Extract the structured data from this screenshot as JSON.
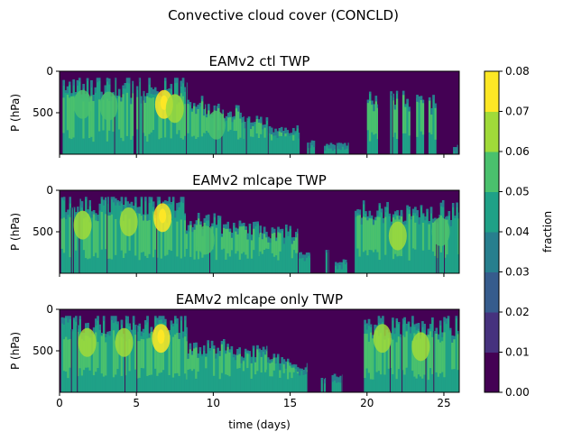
{
  "figure_title": "Convective cloud cover (CONCLD)",
  "colors": {
    "levels": [
      "#440154",
      "#46327e",
      "#365c8d",
      "#277f8e",
      "#1fa187",
      "#4ac16d",
      "#a0da39",
      "#fde725"
    ],
    "background": "#ffffff",
    "axis": "#000000"
  },
  "chart_data": [
    {
      "type": "heatmap",
      "title": "EAMv2 ctl TWP",
      "xlabel": "",
      "ylabel": "P (hPa)",
      "xlim": [
        0,
        26
      ],
      "ylim": [
        1000,
        0
      ],
      "yticks": [
        "0",
        "500"
      ],
      "xticks": [
        "0",
        "5",
        "10",
        "15",
        "20",
        "25"
      ],
      "xticklabels_visible": false,
      "segments": [
        {
          "x": [
            0.2,
            4.8
          ],
          "level": 4,
          "ptop": 180
        },
        {
          "x": [
            5.0,
            8.3
          ],
          "level": 4,
          "ptop": 160
        },
        {
          "x": [
            8.3,
            9.5
          ],
          "level": 4,
          "ptop": 350
        },
        {
          "x": [
            9.5,
            12.0
          ],
          "level": 4,
          "ptop": 480
        },
        {
          "x": [
            12.0,
            13.6
          ],
          "level": 4,
          "ptop": 600
        },
        {
          "x": [
            13.6,
            15.6
          ],
          "level": 4,
          "ptop": 700
        },
        {
          "x": [
            16.1,
            16.6
          ],
          "level": 4,
          "ptop": 850
        },
        {
          "x": [
            17.2,
            18.8
          ],
          "level": 4,
          "ptop": 880
        },
        {
          "x": [
            20.0,
            20.7
          ],
          "level": 4,
          "ptop": 350
        },
        {
          "x": [
            21.5,
            22.0
          ],
          "level": 4,
          "ptop": 300
        },
        {
          "x": [
            22.3,
            22.8
          ],
          "level": 4,
          "ptop": 330
        },
        {
          "x": [
            23.2,
            23.7
          ],
          "level": 4,
          "ptop": 300
        },
        {
          "x": [
            24.0,
            24.5
          ],
          "level": 4,
          "ptop": 330
        },
        {
          "x": [
            25.6,
            25.9
          ],
          "level": 4,
          "ptop": 900
        }
      ],
      "blobs": [
        {
          "x": 1.5,
          "p": 400,
          "level": 5
        },
        {
          "x": 3.2,
          "p": 420,
          "level": 5
        },
        {
          "x": 6.8,
          "p": 400,
          "level": 7
        },
        {
          "x": 7.5,
          "p": 450,
          "level": 6
        },
        {
          "x": 10.2,
          "p": 650,
          "level": 5
        }
      ]
    },
    {
      "type": "heatmap",
      "title": "EAMv2 mlcape TWP",
      "xlabel": "",
      "ylabel": "P (hPa)",
      "xlim": [
        0,
        26
      ],
      "ylim": [
        1000,
        0
      ],
      "yticks": [
        "0",
        "500"
      ],
      "xticks": [
        "0",
        "5",
        "10",
        "15",
        "20",
        "25"
      ],
      "xticklabels_visible": false,
      "segments": [
        {
          "x": [
            0.1,
            8.2
          ],
          "level": 4,
          "ptop": 150
        },
        {
          "x": [
            8.2,
            10.5
          ],
          "level": 4,
          "ptop": 380
        },
        {
          "x": [
            10.5,
            13.0
          ],
          "level": 4,
          "ptop": 450
        },
        {
          "x": [
            13.0,
            15.5
          ],
          "level": 4,
          "ptop": 500
        },
        {
          "x": [
            15.5,
            16.3
          ],
          "level": 4,
          "ptop": 750
        },
        {
          "x": [
            17.3,
            17.5
          ],
          "level": 4,
          "ptop": 700
        },
        {
          "x": [
            17.9,
            18.7
          ],
          "level": 4,
          "ptop": 850
        },
        {
          "x": [
            19.2,
            26.0
          ],
          "level": 4,
          "ptop": 250
        }
      ],
      "blobs": [
        {
          "x": 1.5,
          "p": 420,
          "level": 6
        },
        {
          "x": 4.5,
          "p": 380,
          "level": 6
        },
        {
          "x": 6.7,
          "p": 330,
          "level": 7
        },
        {
          "x": 9.5,
          "p": 600,
          "level": 5
        },
        {
          "x": 22.0,
          "p": 550,
          "level": 6
        },
        {
          "x": 24.8,
          "p": 500,
          "level": 5
        }
      ]
    },
    {
      "type": "heatmap",
      "title": "EAMv2 mlcape only TWP",
      "xlabel": "time (days)",
      "ylabel": "P (hPa)",
      "xlim": [
        0,
        26
      ],
      "ylim": [
        1000,
        0
      ],
      "yticks": [
        "0",
        "500"
      ],
      "xticks": [
        "0",
        "5",
        "10",
        "15",
        "20",
        "25"
      ],
      "xticklabels_visible": true,
      "segments": [
        {
          "x": [
            0.1,
            8.3
          ],
          "level": 4,
          "ptop": 150
        },
        {
          "x": [
            8.3,
            11.0
          ],
          "level": 4,
          "ptop": 450
        },
        {
          "x": [
            11.0,
            13.5
          ],
          "level": 4,
          "ptop": 500
        },
        {
          "x": [
            13.5,
            15.3
          ],
          "level": 4,
          "ptop": 600
        },
        {
          "x": [
            15.3,
            16.1
          ],
          "level": 4,
          "ptop": 700
        },
        {
          "x": [
            17.0,
            17.3
          ],
          "level": 4,
          "ptop": 820
        },
        {
          "x": [
            17.7,
            18.4
          ],
          "level": 4,
          "ptop": 800
        },
        {
          "x": [
            19.8,
            26.0
          ],
          "level": 4,
          "ptop": 180
        }
      ],
      "blobs": [
        {
          "x": 1.8,
          "p": 400,
          "level": 6
        },
        {
          "x": 4.2,
          "p": 400,
          "level": 6
        },
        {
          "x": 6.6,
          "p": 350,
          "level": 7
        },
        {
          "x": 21.0,
          "p": 350,
          "level": 6
        },
        {
          "x": 23.5,
          "p": 450,
          "level": 6
        }
      ]
    }
  ],
  "colorbar": {
    "label": "fraction",
    "ticks": [
      "0.00",
      "0.01",
      "0.02",
      "0.03",
      "0.04",
      "0.05",
      "0.06",
      "0.07",
      "0.08"
    ]
  }
}
